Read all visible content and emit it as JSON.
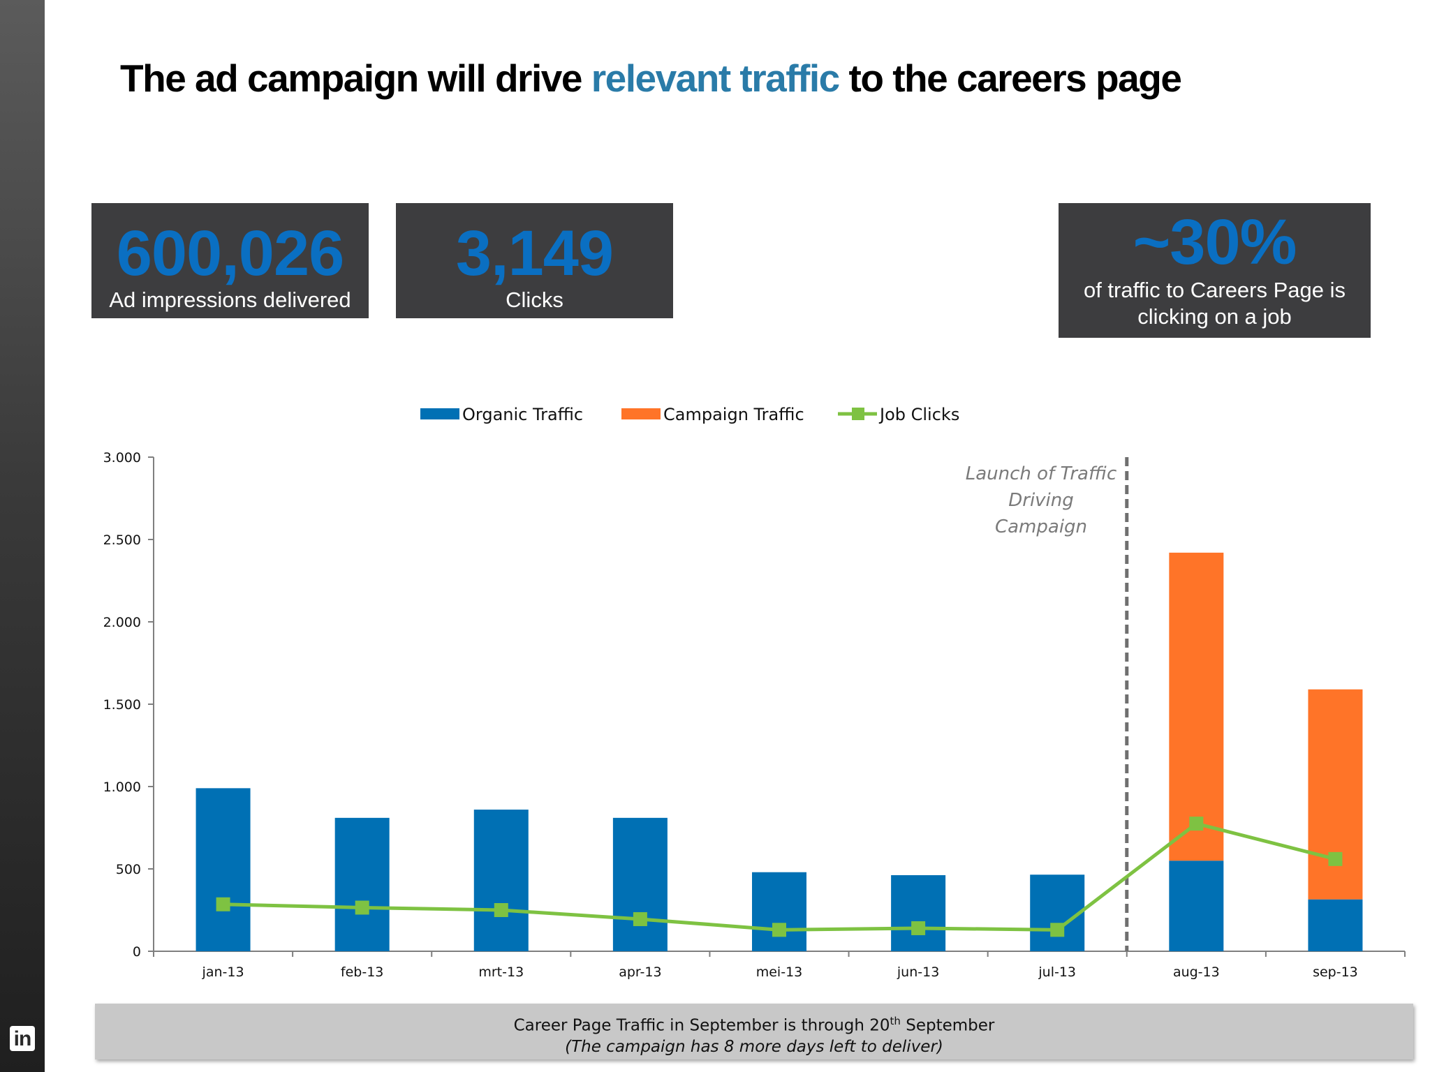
{
  "slide": {
    "headline_pre": "The ad campaign will drive ",
    "headline_highlight": "relevant traffic",
    "headline_post": " to the careers page"
  },
  "kpis": [
    {
      "value": "600,026",
      "caption": "Ad impressions delivered"
    },
    {
      "value": "3,149",
      "caption": "Clicks"
    },
    {
      "value": "~30%",
      "caption": "of traffic to Careers Page is clicking on a job"
    }
  ],
  "chart_data": {
    "type": "bar",
    "stacked": true,
    "categories": [
      "jan-13",
      "feb-13",
      "mrt-13",
      "apr-13",
      "mei-13",
      "jun-13",
      "jul-13",
      "aug-13",
      "sep-13"
    ],
    "series": [
      {
        "name": "Organic Traffic",
        "type": "bar",
        "color": "#0070b4",
        "values": [
          990,
          810,
          860,
          810,
          480,
          462,
          465,
          550,
          315
        ]
      },
      {
        "name": "Campaign Traffic",
        "type": "bar",
        "color": "#ff7428",
        "values": [
          0,
          0,
          0,
          0,
          0,
          0,
          0,
          1870,
          1275
        ]
      },
      {
        "name": "Job Clicks",
        "type": "line",
        "color": "#7ec242",
        "values": [
          285,
          265,
          250,
          195,
          130,
          140,
          130,
          775,
          560
        ]
      }
    ],
    "ylim": [
      0,
      3000
    ],
    "yticks": [
      0,
      500,
      1000,
      1500,
      2000,
      2500,
      3000
    ],
    "ytick_labels": [
      "0",
      "500",
      "1.000",
      "1.500",
      "2.000",
      "2.500",
      "3.000"
    ],
    "legend_position": "top-center",
    "grid": false,
    "annotation": {
      "lines": [
        "Launch of Traffic",
        "Driving",
        "Campaign"
      ],
      "between": [
        "jul-13",
        "aug-13"
      ]
    }
  },
  "footer": {
    "line1_pre": "Career Page Traffic in September is through 20",
    "line1_sup": "th",
    "line1_post": " September",
    "line2": "(The campaign has 8 more days left to deliver)"
  },
  "logo": {
    "text": "in",
    "icon": "linkedin-icon"
  }
}
